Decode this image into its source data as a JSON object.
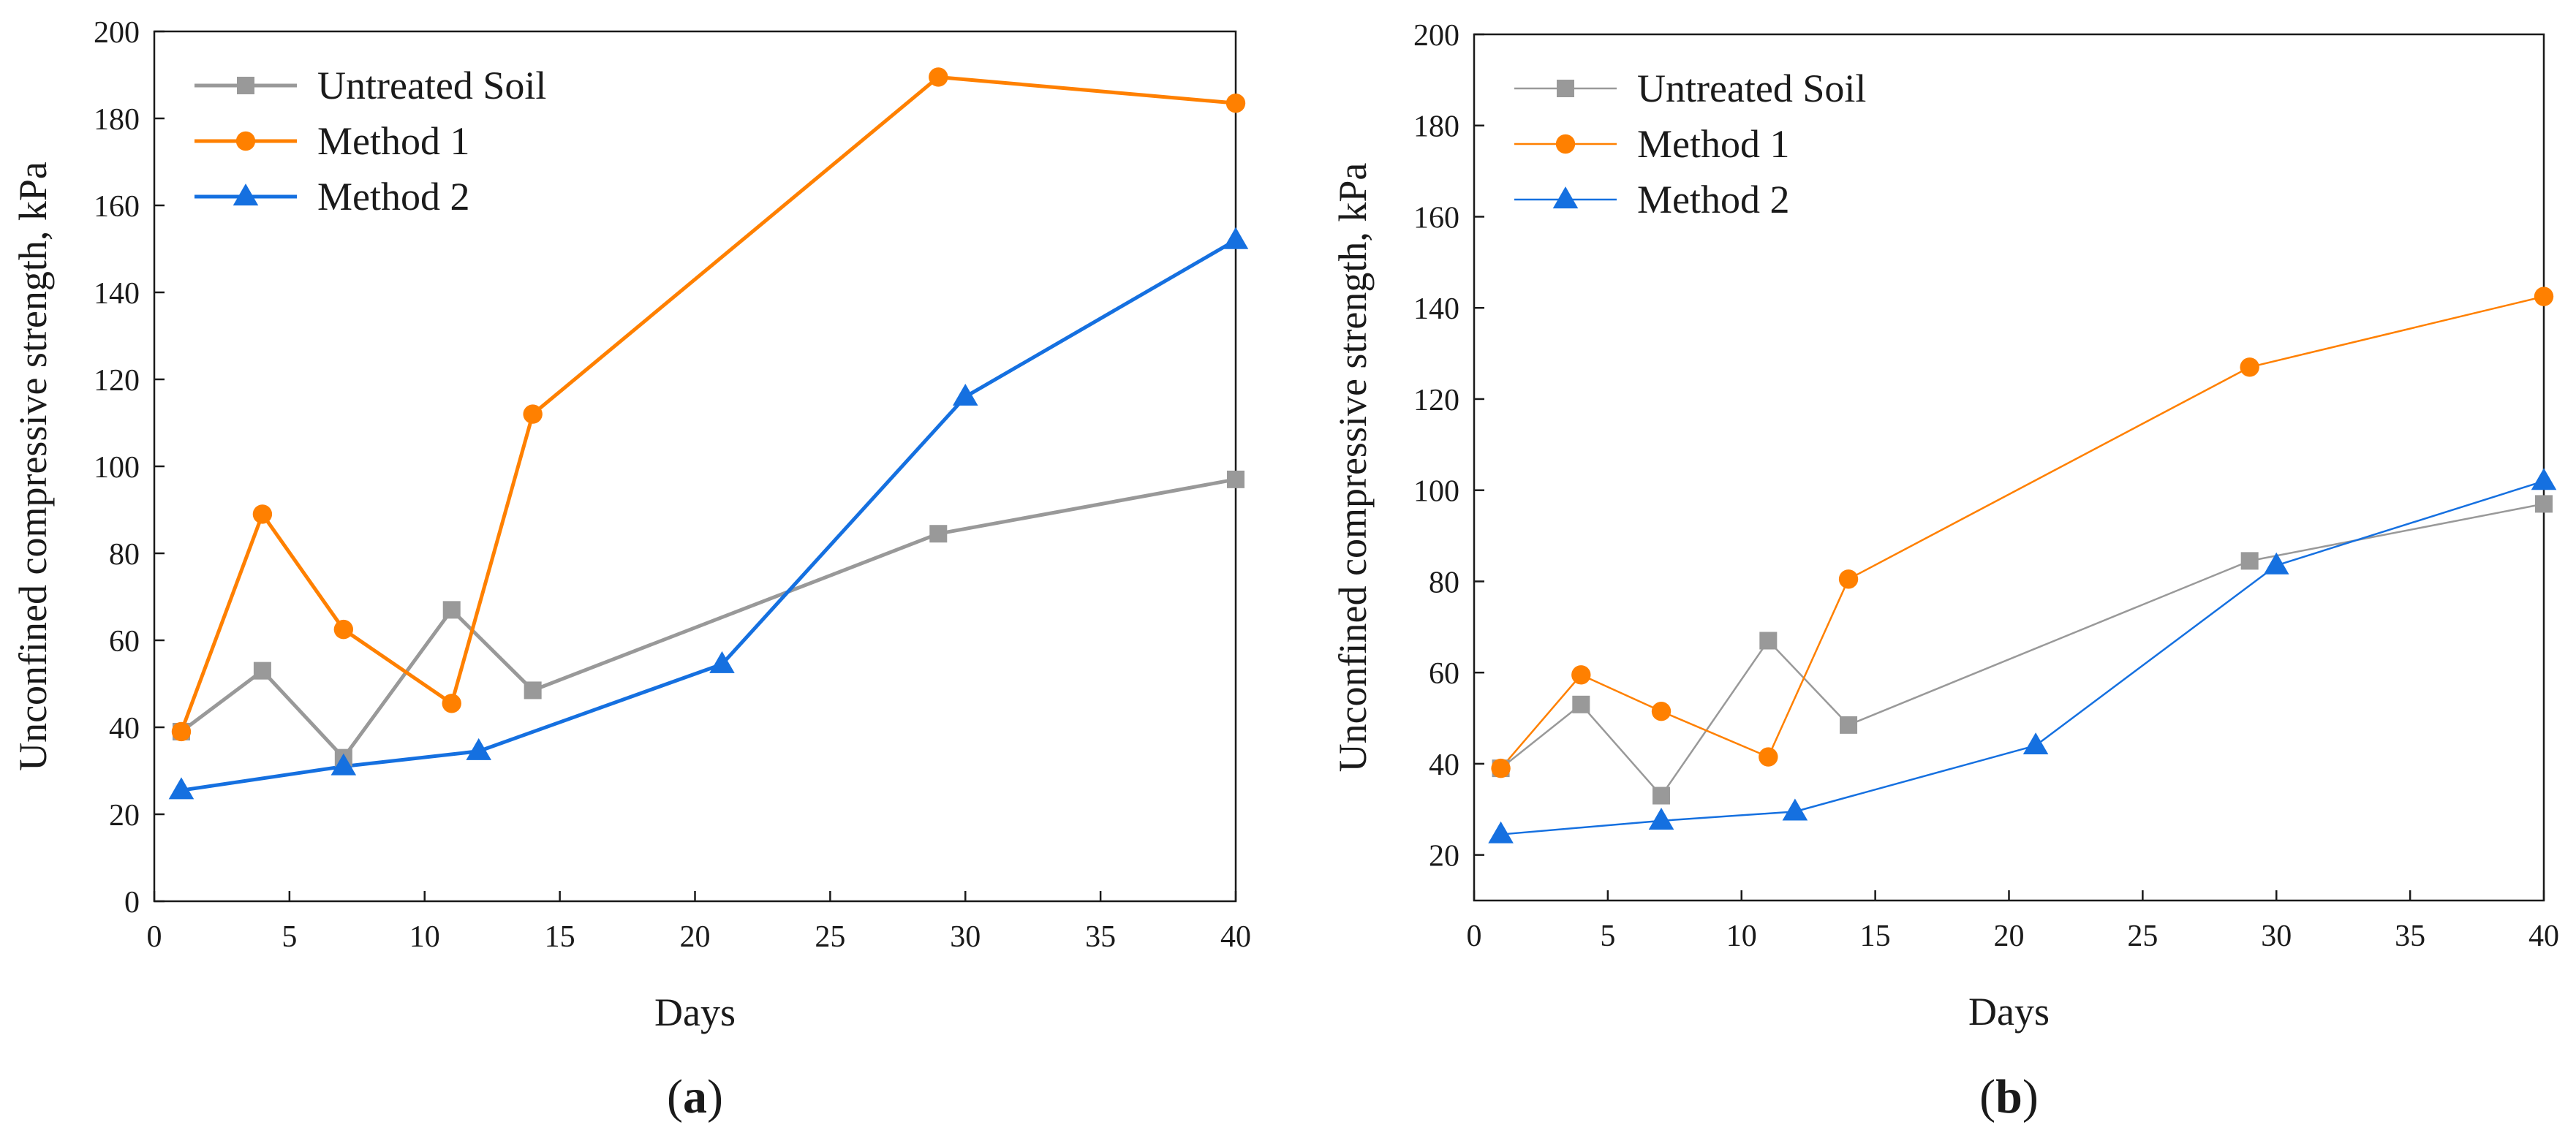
{
  "figure": {
    "background": "#ffffff"
  },
  "chart_data": [
    {
      "type": "line",
      "panel_label": "a",
      "title": "",
      "xlabel": "Days",
      "ylabel": "Unconfined compressive strength, kPa",
      "xlim": [
        0,
        40
      ],
      "ylim": [
        0,
        200
      ],
      "xticks": [
        0,
        5,
        10,
        15,
        20,
        25,
        30,
        35,
        40
      ],
      "yticks": [
        0,
        20,
        40,
        60,
        80,
        100,
        120,
        140,
        160,
        180,
        200
      ],
      "grid": false,
      "legend_position": "top-left",
      "line_style": "thick",
      "series": [
        {
          "name": "Untreated Soil",
          "color": "#999999",
          "marker": "square",
          "x": [
            1,
            4,
            7,
            11,
            14,
            29,
            40
          ],
          "y": [
            39,
            53,
            33,
            67,
            48.5,
            84.5,
            97
          ]
        },
        {
          "name": "Method 1",
          "color": "#ff8000",
          "marker": "circle",
          "x": [
            1,
            4,
            7,
            11,
            14,
            29,
            40
          ],
          "y": [
            39,
            89,
            62.5,
            45.5,
            112,
            189.5,
            183.5
          ]
        },
        {
          "name": "Method 2",
          "color": "#1570e0",
          "marker": "triangle",
          "x": [
            1,
            7,
            12,
            21,
            30,
            40
          ],
          "y": [
            25.5,
            31,
            34.5,
            54.5,
            116,
            152
          ]
        }
      ]
    },
    {
      "type": "line",
      "panel_label": "b",
      "title": "",
      "xlabel": "Days",
      "ylabel": "Unconfined compressive strength, kPa",
      "xlim": [
        0,
        40
      ],
      "ylim": [
        10,
        200
      ],
      "xticks": [
        0,
        5,
        10,
        15,
        20,
        25,
        30,
        35,
        40
      ],
      "yticks": [
        20,
        40,
        60,
        80,
        100,
        120,
        140,
        160,
        180,
        200
      ],
      "grid": false,
      "legend_position": "top-left",
      "line_style": "thin",
      "series": [
        {
          "name": "Untreated Soil",
          "color": "#999999",
          "marker": "square",
          "x": [
            1,
            4,
            7,
            11,
            14,
            29,
            40
          ],
          "y": [
            39,
            53,
            33,
            67,
            48.5,
            84.5,
            97
          ]
        },
        {
          "name": "Method 1",
          "color": "#ff8000",
          "marker": "circle",
          "x": [
            1,
            4,
            7,
            11,
            14,
            29,
            40
          ],
          "y": [
            39,
            59.5,
            51.5,
            41.5,
            80.5,
            127,
            142.5
          ]
        },
        {
          "name": "Method 2",
          "color": "#1570e0",
          "marker": "triangle",
          "x": [
            1,
            7,
            12,
            21,
            30,
            40
          ],
          "y": [
            24.5,
            27.5,
            29.5,
            44,
            83.5,
            102
          ]
        }
      ]
    }
  ]
}
